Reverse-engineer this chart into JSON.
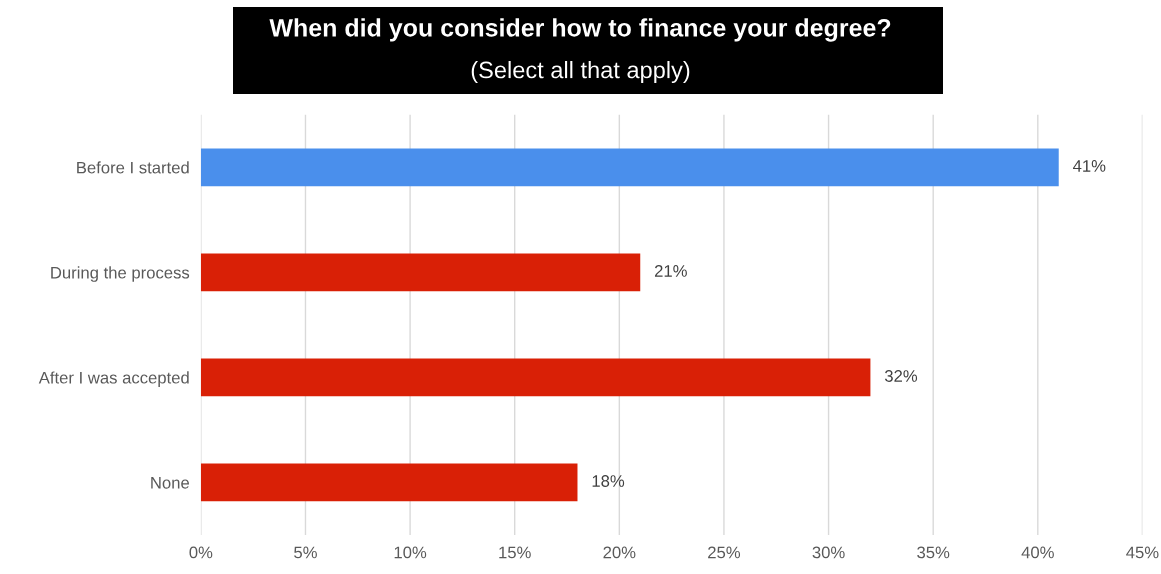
{
  "chart_data": {
    "type": "bar",
    "orientation": "horizontal",
    "title": "When did you consider how to finance your degree?",
    "subtitle": "(Select all that apply)",
    "categories": [
      "Before I started",
      "During the process",
      "After I was accepted",
      "None"
    ],
    "values": [
      41,
      21,
      32,
      18
    ],
    "colors": [
      "#4a8fec",
      "#d92006",
      "#d92006",
      "#d92006"
    ],
    "value_labels": [
      "41%",
      "21%",
      "32%",
      "18%"
    ],
    "xlim": [
      0,
      45
    ],
    "xticks": [
      {
        "value": 0,
        "label": "0%"
      },
      {
        "value": 5,
        "label": "5%"
      },
      {
        "value": 10,
        "label": "10%"
      },
      {
        "value": 15,
        "label": "15%"
      },
      {
        "value": 20,
        "label": "20%"
      },
      {
        "value": 25,
        "label": "25%"
      },
      {
        "value": 30,
        "label": "30%"
      },
      {
        "value": 35,
        "label": "35%"
      },
      {
        "value": 40,
        "label": "40%"
      },
      {
        "value": 45,
        "label": "45%"
      }
    ],
    "grid": "x",
    "legend": false
  }
}
